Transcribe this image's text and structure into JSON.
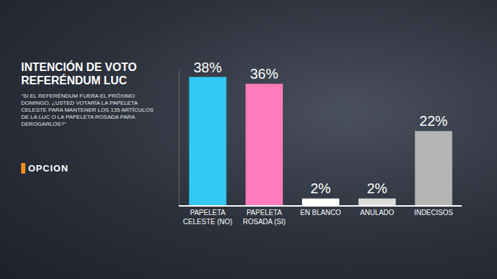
{
  "chart_data": {
    "type": "bar",
    "title": "INTENCIÓN DE VOTO REFERÉNDUM LUC",
    "subtitle": "\"SI EL REFERÉNDUM FUERA EL PRÓXIMO DOMINGO, ¿USTED VOTARÍA LA PAPELETA CELESTE PARA MANTENER LOS 135 ARTÍCULOS DE LA LUC O LA PAPELETA ROSADA PARA DEROGARLOS?\"",
    "source": "OPCION",
    "categories": [
      "PAPELETA CELESTE (NO)",
      "PAPELETA ROSADA (SI)",
      "EN BLANCO",
      "ANULADO",
      "INDECISOS"
    ],
    "values": [
      38,
      36,
      2,
      2,
      22
    ],
    "value_labels": [
      "38%",
      "36%",
      "2%",
      "2%",
      "22%"
    ],
    "colors": [
      "#33c7f5",
      "#ff7bbb",
      "#ffffff",
      "#dcdcdc",
      "#b5b5b5"
    ],
    "ylim": [
      0,
      40
    ],
    "grid": false,
    "data_labels": true,
    "tick_labels": "x"
  }
}
